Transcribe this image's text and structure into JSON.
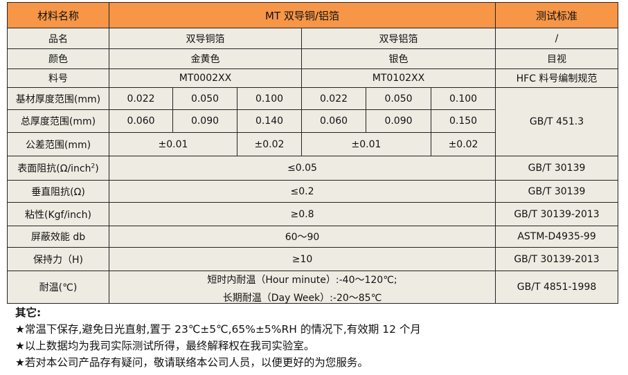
{
  "header": {
    "material_name": "材料名称",
    "product_line": "MT 双导铜/铝箔",
    "test_standard": "测试标准"
  },
  "rows": {
    "product_name": {
      "label": "品名",
      "copper": "双导铜箔",
      "aluminum": "双导铝箔",
      "std": "/"
    },
    "color": {
      "label": "颜色",
      "copper": "金黄色",
      "aluminum": "银色",
      "std": "目视"
    },
    "part_no": {
      "label": "料号",
      "copper": "MT0002XX",
      "aluminum": "MT0102XX",
      "std": "HFC 料号编制规范"
    },
    "base_thickness": {
      "label": "基材厚度范围(mm)",
      "values": [
        "0.022",
        "0.050",
        "0.100",
        "0.022",
        "0.050",
        "0.100"
      ]
    },
    "total_thickness": {
      "label": "总厚度范围(mm)",
      "values": [
        "0.060",
        "0.090",
        "0.140",
        "0.060",
        "0.090",
        "0.150"
      ],
      "std": "GB/T 451.3"
    },
    "tolerance": {
      "label": "公差范围(mm)",
      "values": [
        "±0.01",
        "±0.02",
        "±0.01",
        "±0.02"
      ]
    },
    "surface_resistance": {
      "label": "表面阻抗(Ω/inch",
      "label_sup": "2",
      "label_end": ")",
      "value": "≤0.05",
      "std": "GB/T 30139"
    },
    "vertical_resistance": {
      "label": "垂直阻抗(Ω)",
      "value": "≤0.2",
      "std": "GB/T 30139"
    },
    "adhesion": {
      "label": "粘性(Kgf/inch)",
      "value": "≥0.8",
      "std": "GB/T 30139-2013"
    },
    "shielding": {
      "label": "屏蔽效能 db",
      "value": "60～90",
      "std": "ASTM-D4935-99"
    },
    "holding": {
      "label": "保持力（H)",
      "value": "≥10",
      "std": "GB/T 30139-2013"
    },
    "temperature": {
      "label": "耐温(℃)",
      "short": "短时内耐温（Hour minute）:-40～120℃;",
      "long": "长期耐温（Day Week）:-20～85℃",
      "std": "GB/T 4851-1998"
    }
  },
  "notes": {
    "title": "其它:",
    "items": [
      "★常温下保存,避免日光直射,置于 23℃±5℃,65%±5%RH 的情况下,有效期 12 个月",
      "★以上数据均为我司实际测试所得，最终解释权在我司实验室。",
      "★若对本公司产品存有疑问，敬请联络本公司人员，以便更好的为您服务。"
    ]
  }
}
